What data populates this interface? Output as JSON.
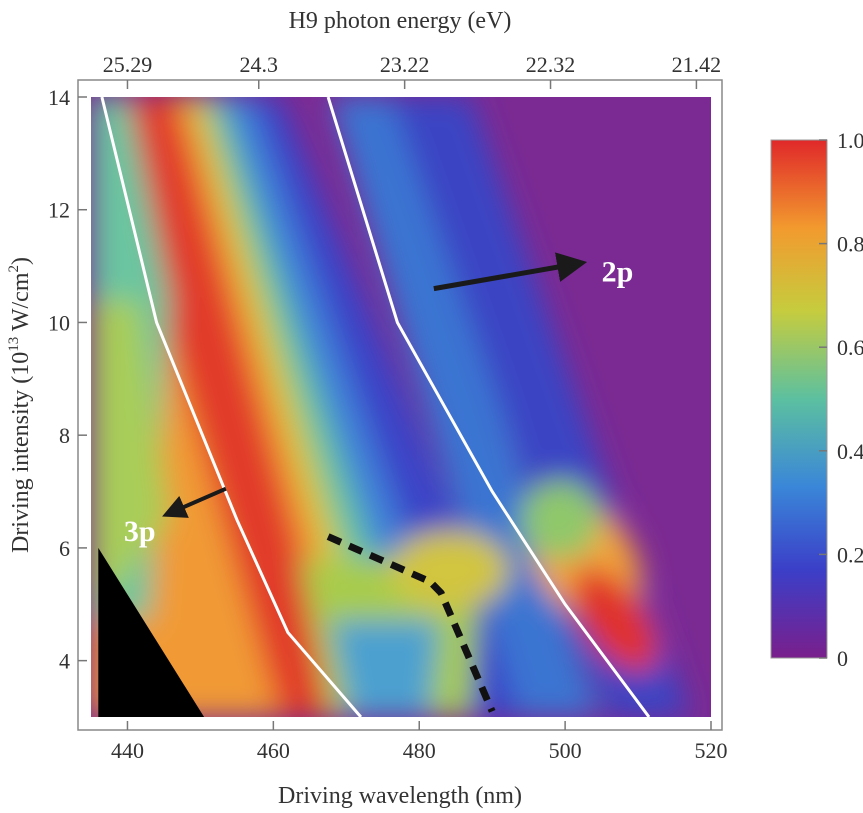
{
  "chart_data": {
    "type": "heatmap",
    "title": "",
    "xlabel": "Driving wavelength (nm)",
    "ylabel": "Driving intensity (10",
    "ylabel_sup": "13",
    "ylabel_unit": " W/cm",
    "ylabel_unit_sup": "2",
    "ylabel_close": ")",
    "top_xlabel": "H9 photon energy (eV)",
    "xlim": [
      435,
      520
    ],
    "ylim": [
      3,
      14
    ],
    "x_ticks": [
      440,
      460,
      480,
      500,
      520
    ],
    "x_tick_labels": [
      "440",
      "460",
      "480",
      "500",
      "520"
    ],
    "y_ticks": [
      4,
      6,
      8,
      10,
      12,
      14
    ],
    "y_tick_labels": [
      "4",
      "6",
      "8",
      "10",
      "12",
      "14"
    ],
    "top_ticks": [
      {
        "wavelength": 440,
        "label": "25.29"
      },
      {
        "wavelength": 458,
        "label": "24.3"
      },
      {
        "wavelength": 478,
        "label": "23.22"
      },
      {
        "wavelength": 498,
        "label": "22.32"
      },
      {
        "wavelength": 518,
        "label": "21.42"
      }
    ],
    "colorbar": {
      "min": 0,
      "max": 1,
      "ticks": [
        0,
        0.2,
        0.4,
        0.6,
        0.8,
        1.0
      ],
      "tick_labels": [
        "0",
        "0.2",
        "0.4",
        "0.6",
        "0.8",
        "1.0"
      ],
      "colors": [
        "#7a1f8c",
        "#3b3fc8",
        "#3a86d8",
        "#5cc0a0",
        "#c6cc3e",
        "#f29a2e",
        "#e0282a"
      ]
    },
    "data_extent": {
      "x": [
        436,
        520
      ],
      "y": [
        3,
        14
      ]
    },
    "black_region": [
      [
        436,
        3
      ],
      [
        436,
        6
      ],
      [
        450.5,
        3
      ]
    ],
    "resonance_lines": [
      {
        "name": "3p",
        "points": [
          [
            436.5,
            14
          ],
          [
            444,
            10
          ],
          [
            455,
            6.5
          ],
          [
            462,
            4.5
          ],
          [
            472,
            3
          ]
        ]
      },
      {
        "name": "2p",
        "points": [
          [
            467.5,
            14
          ],
          [
            477,
            10
          ],
          [
            490,
            7
          ],
          [
            500,
            5
          ],
          [
            511.5,
            3
          ]
        ]
      }
    ],
    "dashed_line": [
      [
        467.5,
        6.2
      ],
      [
        481.5,
        5.4
      ],
      [
        483,
        5.2
      ],
      [
        487,
        4
      ],
      [
        490,
        3.1
      ]
    ],
    "annotations": [
      {
        "text": "2p",
        "x": 505,
        "y": 10.9,
        "arrow_from": [
          482,
          10.6
        ],
        "arrow_to": [
          502,
          11.05
        ]
      },
      {
        "text": "3p",
        "x": 439.5,
        "y": 6.3,
        "arrow_from": [
          453.5,
          7.05
        ],
        "arrow_to": [
          445.5,
          6.6
        ]
      }
    ]
  }
}
